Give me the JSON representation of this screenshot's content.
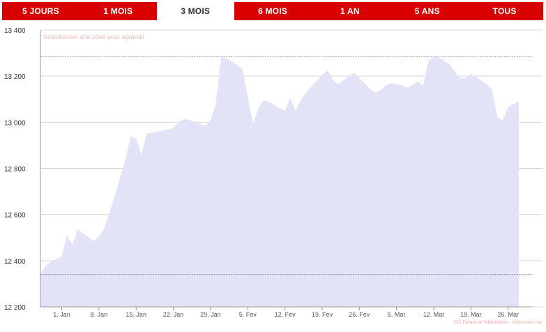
{
  "range_tabs": [
    {
      "label": "5 JOURS",
      "active": false
    },
    {
      "label": "1 MOIS",
      "active": false
    },
    {
      "label": "3 MOIS",
      "active": true
    },
    {
      "label": "6 MOIS",
      "active": false
    },
    {
      "label": "1 AN",
      "active": false
    },
    {
      "label": "5 ANS",
      "active": false
    },
    {
      "label": "TOUS",
      "active": false
    }
  ],
  "zoom_hint": "Sélectionner une zone pour agrandir",
  "credits": "SIX Financial Information - leboursier.ma",
  "colors": {
    "accent": "#d90000",
    "area_fill": "#e2e3f6",
    "grid": "#d8d8d8",
    "reference_line": "#8a8a9a"
  },
  "chart_data": {
    "type": "area",
    "ylim": [
      12200,
      13400
    ],
    "yticks": [
      12200,
      12400,
      12600,
      12800,
      13000,
      13200,
      13400
    ],
    "ytick_labels": [
      "12 200",
      "12 400",
      "12 600",
      "12 800",
      "13 000",
      "13 200",
      "13 400"
    ],
    "xlim": [
      -4,
      88.5
    ],
    "xticks": [
      0,
      7,
      14,
      21,
      28,
      35,
      42,
      49,
      56,
      63,
      70,
      77,
      84
    ],
    "xtick_labels": [
      "1. Jan",
      "8. Jan",
      "15. Jan",
      "22. Jan",
      "29. Jan",
      "5. Fev",
      "12. Fev",
      "19. Fev",
      "26. Fev",
      "5. Mar",
      "12. Mar",
      "19. Mar",
      "26. Mar"
    ],
    "reference_lines": [
      13285,
      12340
    ],
    "grid": true,
    "x": [
      -4,
      -3,
      -2,
      0,
      1,
      2,
      3,
      4,
      6,
      7,
      8,
      9,
      10,
      11,
      12,
      13,
      14,
      15,
      16,
      17,
      18,
      21,
      22,
      23,
      24,
      25,
      27,
      28,
      29,
      30,
      31,
      32,
      34,
      35,
      36,
      37,
      38,
      39,
      40,
      41,
      42,
      43,
      44,
      45,
      47,
      48,
      49,
      50,
      51,
      52,
      55,
      57,
      58,
      59,
      60,
      61,
      62,
      64,
      65,
      67,
      68,
      69,
      70,
      71,
      72,
      73,
      74,
      75,
      76,
      77,
      78,
      79,
      80,
      81,
      82,
      83,
      84,
      85,
      86
    ],
    "y": [
      12340,
      12380,
      12395,
      12420,
      12510,
      12470,
      12535,
      12520,
      12485,
      12505,
      12540,
      12610,
      12680,
      12760,
      12840,
      12940,
      12930,
      12860,
      12950,
      12955,
      12960,
      12975,
      13000,
      13015,
      13010,
      13000,
      12985,
      13010,
      13080,
      13285,
      13275,
      13265,
      13230,
      13110,
      12995,
      13060,
      13095,
      13090,
      13075,
      13060,
      13050,
      13105,
      13050,
      13100,
      13155,
      13180,
      13205,
      13225,
      13185,
      13165,
      13215,
      13170,
      13145,
      13130,
      13140,
      13160,
      13170,
      13160,
      13150,
      13175,
      13160,
      13265,
      13285,
      13280,
      13265,
      13250,
      13220,
      13190,
      13190,
      13210,
      13195,
      13180,
      13165,
      13140,
      13020,
      13010,
      13065,
      13080,
      13090
    ]
  }
}
